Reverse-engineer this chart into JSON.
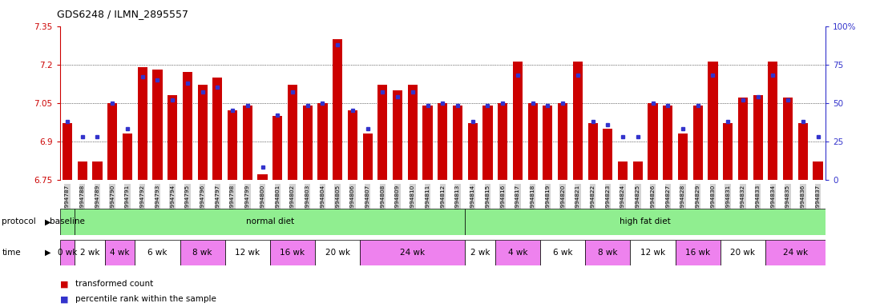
{
  "title": "GDS6248 / ILMN_2895557",
  "gsm_ids": [
    "GSM994787",
    "GSM994788",
    "GSM994789",
    "GSM994790",
    "GSM994791",
    "GSM994792",
    "GSM994793",
    "GSM994794",
    "GSM994795",
    "GSM994796",
    "GSM994797",
    "GSM994798",
    "GSM994799",
    "GSM994800",
    "GSM994801",
    "GSM994802",
    "GSM994803",
    "GSM994804",
    "GSM994805",
    "GSM994806",
    "GSM994807",
    "GSM994808",
    "GSM994809",
    "GSM994810",
    "GSM994811",
    "GSM994812",
    "GSM994813",
    "GSM994814",
    "GSM994815",
    "GSM994816",
    "GSM994817",
    "GSM994818",
    "GSM994819",
    "GSM994820",
    "GSM994821",
    "GSM994822",
    "GSM994823",
    "GSM994824",
    "GSM994825",
    "GSM994826",
    "GSM994827",
    "GSM994828",
    "GSM994829",
    "GSM994830",
    "GSM994831",
    "GSM994832",
    "GSM994833",
    "GSM994834",
    "GSM994835",
    "GSM994836",
    "GSM994837"
  ],
  "bar_values": [
    6.97,
    6.82,
    6.82,
    7.05,
    6.93,
    7.19,
    7.18,
    7.08,
    7.17,
    7.12,
    7.15,
    7.02,
    7.04,
    6.77,
    7.0,
    7.12,
    7.04,
    7.05,
    7.3,
    7.02,
    6.93,
    7.12,
    7.1,
    7.12,
    7.04,
    7.05,
    7.04,
    6.97,
    7.04,
    7.05,
    7.21,
    7.05,
    7.04,
    7.05,
    7.21,
    6.97,
    6.95,
    6.82,
    6.82,
    7.05,
    7.04,
    6.93,
    7.04,
    7.21,
    6.97,
    7.07,
    7.08,
    7.21,
    7.07,
    6.97,
    6.82
  ],
  "percentile_values": [
    38,
    28,
    28,
    50,
    33,
    67,
    65,
    52,
    63,
    57,
    60,
    45,
    48,
    8,
    42,
    57,
    48,
    50,
    88,
    45,
    33,
    57,
    54,
    57,
    48,
    50,
    48,
    38,
    48,
    50,
    68,
    50,
    48,
    50,
    68,
    38,
    36,
    28,
    28,
    50,
    48,
    33,
    48,
    68,
    38,
    52,
    54,
    68,
    52,
    38,
    28
  ],
  "ylim_left": [
    6.75,
    7.35
  ],
  "ylim_right": [
    0,
    100
  ],
  "yticks_left": [
    6.75,
    6.9,
    7.05,
    7.2,
    7.35
  ],
  "yticks_right": [
    0,
    25,
    50,
    75,
    100
  ],
  "bar_color": "#cc0000",
  "dot_color": "#3333cc",
  "left_axis_color": "#cc0000",
  "right_axis_color": "#3333cc",
  "background_color": "#ffffff",
  "tick_bg_color": "#d3d3d3",
  "protocol_groups": [
    {
      "label": "baseline",
      "start": 0,
      "end": 1,
      "color": "#90ee90"
    },
    {
      "label": "normal diet",
      "start": 1,
      "end": 27,
      "color": "#90ee90"
    },
    {
      "label": "high fat diet",
      "start": 27,
      "end": 51,
      "color": "#90ee90"
    }
  ],
  "time_row": [
    {
      "label": "0 wk",
      "start": 0,
      "end": 1,
      "color": "#ee82ee"
    },
    {
      "label": "2 wk",
      "start": 1,
      "end": 3,
      "color": "#ffffff"
    },
    {
      "label": "4 wk",
      "start": 3,
      "end": 5,
      "color": "#ee82ee"
    },
    {
      "label": "6 wk",
      "start": 5,
      "end": 8,
      "color": "#ffffff"
    },
    {
      "label": "8 wk",
      "start": 8,
      "end": 11,
      "color": "#ee82ee"
    },
    {
      "label": "12 wk",
      "start": 11,
      "end": 14,
      "color": "#ffffff"
    },
    {
      "label": "16 wk",
      "start": 14,
      "end": 17,
      "color": "#ee82ee"
    },
    {
      "label": "20 wk",
      "start": 17,
      "end": 20,
      "color": "#ffffff"
    },
    {
      "label": "24 wk",
      "start": 20,
      "end": 27,
      "color": "#ee82ee"
    },
    {
      "label": "2 wk",
      "start": 27,
      "end": 29,
      "color": "#ffffff"
    },
    {
      "label": "4 wk",
      "start": 29,
      "end": 32,
      "color": "#ee82ee"
    },
    {
      "label": "6 wk",
      "start": 32,
      "end": 35,
      "color": "#ffffff"
    },
    {
      "label": "8 wk",
      "start": 35,
      "end": 38,
      "color": "#ee82ee"
    },
    {
      "label": "12 wk",
      "start": 38,
      "end": 41,
      "color": "#ffffff"
    },
    {
      "label": "16 wk",
      "start": 41,
      "end": 44,
      "color": "#ee82ee"
    },
    {
      "label": "20 wk",
      "start": 44,
      "end": 47,
      "color": "#ffffff"
    },
    {
      "label": "24 wk",
      "start": 47,
      "end": 51,
      "color": "#ee82ee"
    }
  ]
}
